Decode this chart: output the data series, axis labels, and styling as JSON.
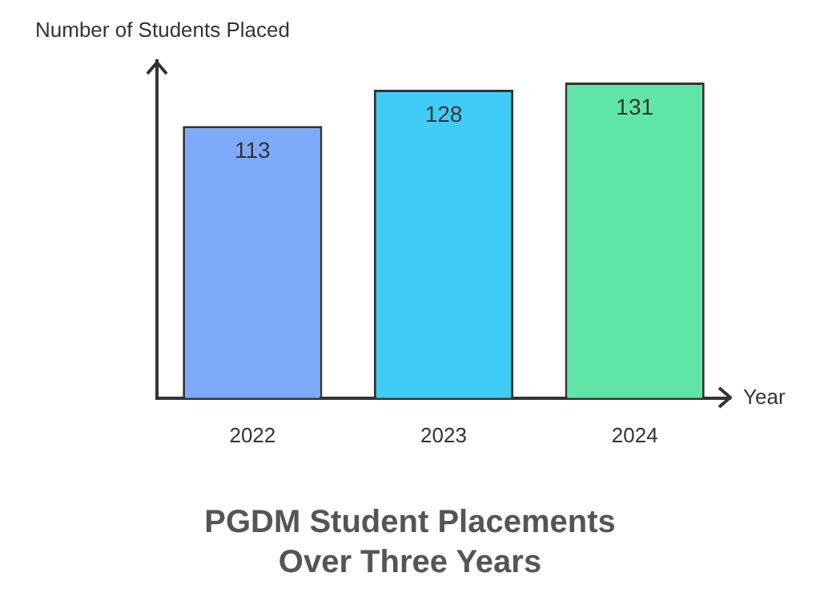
{
  "chart_data": {
    "type": "bar",
    "title": "PGDM Student Placements Over Three Years",
    "xlabel": "Year",
    "ylabel": "Number of Students Placed",
    "categories": [
      "2022",
      "2023",
      "2024"
    ],
    "values": [
      113,
      128,
      131
    ],
    "colors": [
      "#7eaafc",
      "#3fcdf8",
      "#5fe6a6"
    ],
    "data_labels": true,
    "grid": false,
    "legend": false
  }
}
